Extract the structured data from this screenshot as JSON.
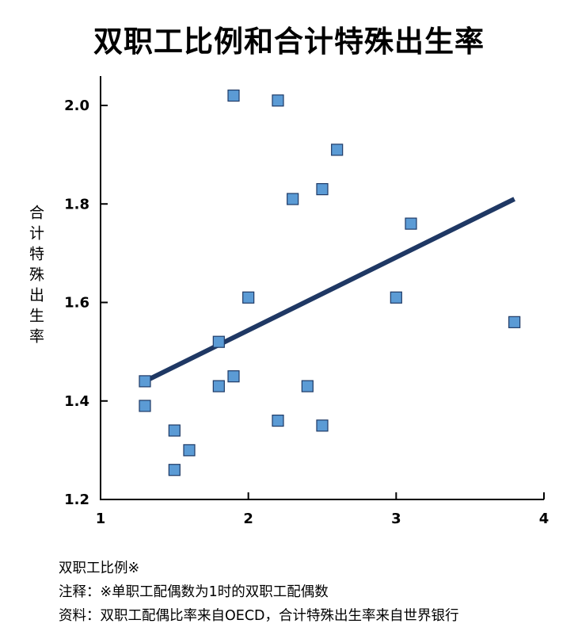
{
  "chart_data": {
    "type": "scatter",
    "title": "双职工比例和合计特殊出生率",
    "xlabel": "",
    "ylabel": "合计特殊出生率",
    "xlim": [
      1,
      4
    ],
    "ylim": [
      1.2,
      2.06
    ],
    "xticks": [
      "1",
      "2",
      "3",
      "4"
    ],
    "yticks": [
      "1.2",
      "1.4",
      "1.6",
      "1.8",
      "2.0"
    ],
    "grid": false,
    "legend": "none",
    "marker_color": "#5b9bd5",
    "marker_edge_color": "#1f3a66",
    "points": [
      {
        "x": 1.3,
        "y": 1.44
      },
      {
        "x": 1.3,
        "y": 1.39
      },
      {
        "x": 1.5,
        "y": 1.34
      },
      {
        "x": 1.5,
        "y": 1.26
      },
      {
        "x": 1.6,
        "y": 1.3
      },
      {
        "x": 1.8,
        "y": 1.52
      },
      {
        "x": 1.8,
        "y": 1.43
      },
      {
        "x": 1.9,
        "y": 1.45
      },
      {
        "x": 1.9,
        "y": 2.02
      },
      {
        "x": 2.0,
        "y": 1.61
      },
      {
        "x": 2.2,
        "y": 2.01
      },
      {
        "x": 2.2,
        "y": 1.36
      },
      {
        "x": 2.3,
        "y": 1.81
      },
      {
        "x": 2.4,
        "y": 1.43
      },
      {
        "x": 2.5,
        "y": 1.83
      },
      {
        "x": 2.5,
        "y": 1.35
      },
      {
        "x": 2.6,
        "y": 1.91
      },
      {
        "x": 3.0,
        "y": 1.61
      },
      {
        "x": 3.1,
        "y": 1.76
      },
      {
        "x": 3.8,
        "y": 1.56
      }
    ],
    "trendline": {
      "color": "#1f3864",
      "from": {
        "x": 1.3,
        "y": 1.44
      },
      "to": {
        "x": 3.8,
        "y": 1.81
      }
    }
  },
  "notes": {
    "line1": "双职工比例※",
    "line2": "注释：※单职工配偶数为1时的双职工配偶数",
    "line3": "资料：双职工配偶比率来自OECD，合计特殊出生率来自世界银行"
  }
}
